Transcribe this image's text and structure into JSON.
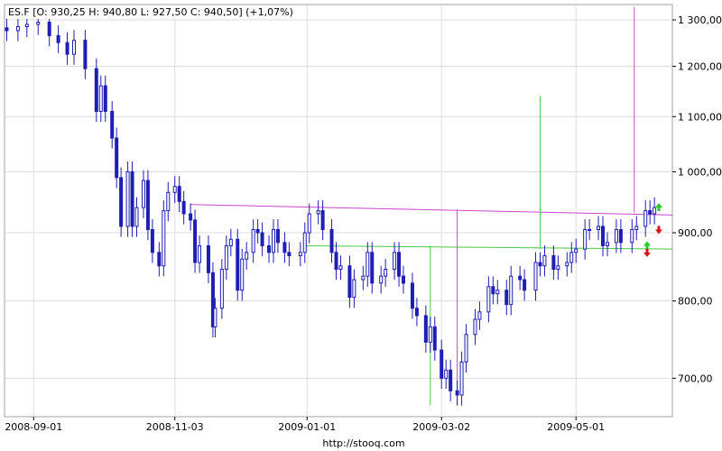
{
  "header": {
    "text": "ES.F [O: 930,25  H: 940,80  L: 927,50  C: 940,50] (+1,07%)"
  },
  "source": "http://stooq.com",
  "chart_data": {
    "type": "candlestick",
    "symbol": "ES.F",
    "last": {
      "open": 930.25,
      "high": 940.8,
      "low": 927.5,
      "close": 940.5,
      "change_pct": "+1,07%"
    },
    "x_ticks": [
      {
        "label": "2008-09-01",
        "date": "2008-09-01"
      },
      {
        "label": "2008-11-03",
        "date": "2008-11-03"
      },
      {
        "label": "2009-01-01",
        "date": "2009-01-01"
      },
      {
        "label": "2009-03-02",
        "date": "2009-03-02"
      },
      {
        "label": "2009-05-01",
        "date": "2009-05-01"
      }
    ],
    "y_scale": "log",
    "y_ticks": [
      {
        "label": "700,00",
        "value": 700
      },
      {
        "label": "800,00",
        "value": 800
      },
      {
        "label": "900,00",
        "value": 900
      },
      {
        "label": "1 000,00",
        "value": 1000
      },
      {
        "label": "1 100,00",
        "value": 1100
      },
      {
        "label": "1 200,00",
        "value": 1200
      },
      {
        "label": "1 300,00",
        "value": 1300
      }
    ],
    "ylim": [
      655,
      1335
    ],
    "xlim": [
      "2008-08-19",
      "2009-06-13"
    ],
    "grid": true,
    "candles": [
      {
        "date": "2008-08-20",
        "close": 1276
      },
      {
        "date": "2008-08-25",
        "close": 1285
      },
      {
        "date": "2008-08-29",
        "close": 1290
      },
      {
        "date": "2008-09-03",
        "close": 1295
      },
      {
        "date": "2008-09-08",
        "close": 1265
      },
      {
        "date": "2008-09-12",
        "close": 1250
      },
      {
        "date": "2008-09-16",
        "close": 1225
      },
      {
        "date": "2008-09-19",
        "close": 1255
      },
      {
        "date": "2008-09-24",
        "close": 1195
      },
      {
        "date": "2008-09-29",
        "close": 1110
      },
      {
        "date": "2008-10-01",
        "close": 1160
      },
      {
        "date": "2008-10-03",
        "close": 1110
      },
      {
        "date": "2008-10-06",
        "close": 1060
      },
      {
        "date": "2008-10-08",
        "close": 990
      },
      {
        "date": "2008-10-10",
        "close": 910
      },
      {
        "date": "2008-10-13",
        "close": 1000
      },
      {
        "date": "2008-10-15",
        "close": 910
      },
      {
        "date": "2008-10-17",
        "close": 940
      },
      {
        "date": "2008-10-20",
        "close": 985
      },
      {
        "date": "2008-10-22",
        "close": 905
      },
      {
        "date": "2008-10-24",
        "close": 870
      },
      {
        "date": "2008-10-27",
        "close": 850
      },
      {
        "date": "2008-10-29",
        "close": 935
      },
      {
        "date": "2008-10-31",
        "close": 965
      },
      {
        "date": "2008-11-03",
        "close": 975
      },
      {
        "date": "2008-11-05",
        "close": 950
      },
      {
        "date": "2008-11-07",
        "close": 930
      },
      {
        "date": "2008-11-10",
        "close": 920
      },
      {
        "date": "2008-11-12",
        "close": 855
      },
      {
        "date": "2008-11-14",
        "close": 880
      },
      {
        "date": "2008-11-18",
        "close": 840
      },
      {
        "date": "2008-11-20",
        "close": 765
      },
      {
        "date": "2008-11-21",
        "close": 790
      },
      {
        "date": "2008-11-24",
        "close": 845
      },
      {
        "date": "2008-11-26",
        "close": 880
      },
      {
        "date": "2008-11-28",
        "close": 890
      },
      {
        "date": "2008-12-01",
        "close": 815
      },
      {
        "date": "2008-12-03",
        "close": 860
      },
      {
        "date": "2008-12-05",
        "close": 870
      },
      {
        "date": "2008-12-08",
        "close": 905
      },
      {
        "date": "2008-12-10",
        "close": 900
      },
      {
        "date": "2008-12-12",
        "close": 880
      },
      {
        "date": "2008-12-15",
        "close": 870
      },
      {
        "date": "2008-12-17",
        "close": 905
      },
      {
        "date": "2008-12-19",
        "close": 885
      },
      {
        "date": "2008-12-22",
        "close": 870
      },
      {
        "date": "2008-12-24",
        "close": 865
      },
      {
        "date": "2008-12-29",
        "close": 870
      },
      {
        "date": "2008-12-31",
        "close": 900
      },
      {
        "date": "2009-01-02",
        "close": 930
      },
      {
        "date": "2009-01-06",
        "close": 935
      },
      {
        "date": "2009-01-08",
        "close": 905
      },
      {
        "date": "2009-01-12",
        "close": 870
      },
      {
        "date": "2009-01-14",
        "close": 845
      },
      {
        "date": "2009-01-16",
        "close": 850
      },
      {
        "date": "2009-01-20",
        "close": 805
      },
      {
        "date": "2009-01-22",
        "close": 830
      },
      {
        "date": "2009-01-26",
        "close": 835
      },
      {
        "date": "2009-01-28",
        "close": 870
      },
      {
        "date": "2009-01-30",
        "close": 825
      },
      {
        "date": "2009-02-03",
        "close": 835
      },
      {
        "date": "2009-02-05",
        "close": 845
      },
      {
        "date": "2009-02-09",
        "close": 870
      },
      {
        "date": "2009-02-11",
        "close": 835
      },
      {
        "date": "2009-02-13",
        "close": 825
      },
      {
        "date": "2009-02-17",
        "close": 790
      },
      {
        "date": "2009-02-19",
        "close": 780
      },
      {
        "date": "2009-02-23",
        "close": 745
      },
      {
        "date": "2009-02-25",
        "close": 765
      },
      {
        "date": "2009-02-27",
        "close": 735
      },
      {
        "date": "2009-03-02",
        "close": 700
      },
      {
        "date": "2009-03-04",
        "close": 710
      },
      {
        "date": "2009-03-06",
        "close": 685
      },
      {
        "date": "2009-03-09",
        "close": 680
      },
      {
        "date": "2009-03-11",
        "close": 720
      },
      {
        "date": "2009-03-13",
        "close": 755
      },
      {
        "date": "2009-03-17",
        "close": 775
      },
      {
        "date": "2009-03-19",
        "close": 785
      },
      {
        "date": "2009-03-23",
        "close": 820
      },
      {
        "date": "2009-03-25",
        "close": 810
      },
      {
        "date": "2009-03-27",
        "close": 815
      },
      {
        "date": "2009-03-31",
        "close": 795
      },
      {
        "date": "2009-04-02",
        "close": 835
      },
      {
        "date": "2009-04-06",
        "close": 830
      },
      {
        "date": "2009-04-08",
        "close": 815
      },
      {
        "date": "2009-04-13",
        "close": 855
      },
      {
        "date": "2009-04-15",
        "close": 850
      },
      {
        "date": "2009-04-17",
        "close": 865
      },
      {
        "date": "2009-04-21",
        "close": 845
      },
      {
        "date": "2009-04-23",
        "close": 850
      },
      {
        "date": "2009-04-27",
        "close": 855
      },
      {
        "date": "2009-04-29",
        "close": 870
      },
      {
        "date": "2009-05-01",
        "close": 875
      },
      {
        "date": "2009-05-05",
        "close": 905
      },
      {
        "date": "2009-05-07",
        "close": 905
      },
      {
        "date": "2009-05-11",
        "close": 910
      },
      {
        "date": "2009-05-13",
        "close": 880
      },
      {
        "date": "2009-05-15",
        "close": 885
      },
      {
        "date": "2009-05-19",
        "close": 905
      },
      {
        "date": "2009-05-21",
        "close": 885
      },
      {
        "date": "2009-05-26",
        "close": 905
      },
      {
        "date": "2009-05-28",
        "close": 910
      },
      {
        "date": "2009-06-01",
        "close": 935
      },
      {
        "date": "2009-06-03",
        "close": 930
      },
      {
        "date": "2009-06-05",
        "close": 940
      }
    ],
    "annotations": {
      "resistance_line": {
        "color": "#cc44cc",
        "from": {
          "date": "2008-11-10",
          "value": 945
        },
        "to": {
          "date": "2009-06-13",
          "value": 928
        }
      },
      "support_line": {
        "color": "#44cc44",
        "from": {
          "date": "2008-12-31",
          "value": 880
        },
        "to": {
          "date": "2009-06-13",
          "value": 875
        }
      },
      "vertical_markers": [
        {
          "color": "#44cc44",
          "date": "2009-02-25",
          "from": 668,
          "to": 880
        },
        {
          "color": "#cc44cc",
          "date": "2009-03-09",
          "from": 668,
          "to": 937
        },
        {
          "color": "#44cc44",
          "date": "2009-04-15",
          "from": 875,
          "to": 1140
        },
        {
          "color": "#cc44cc",
          "date": "2009-05-27",
          "from": 932,
          "to": 1330
        }
      ],
      "arrows": [
        {
          "direction": "up",
          "color": "#22cc22",
          "value": 940
        },
        {
          "direction": "down",
          "color": "#dd1111",
          "value": 905
        },
        {
          "direction": "up",
          "color": "#22cc22",
          "value": 880
        },
        {
          "direction": "down",
          "color": "#dd1111",
          "value": 870
        }
      ]
    }
  }
}
